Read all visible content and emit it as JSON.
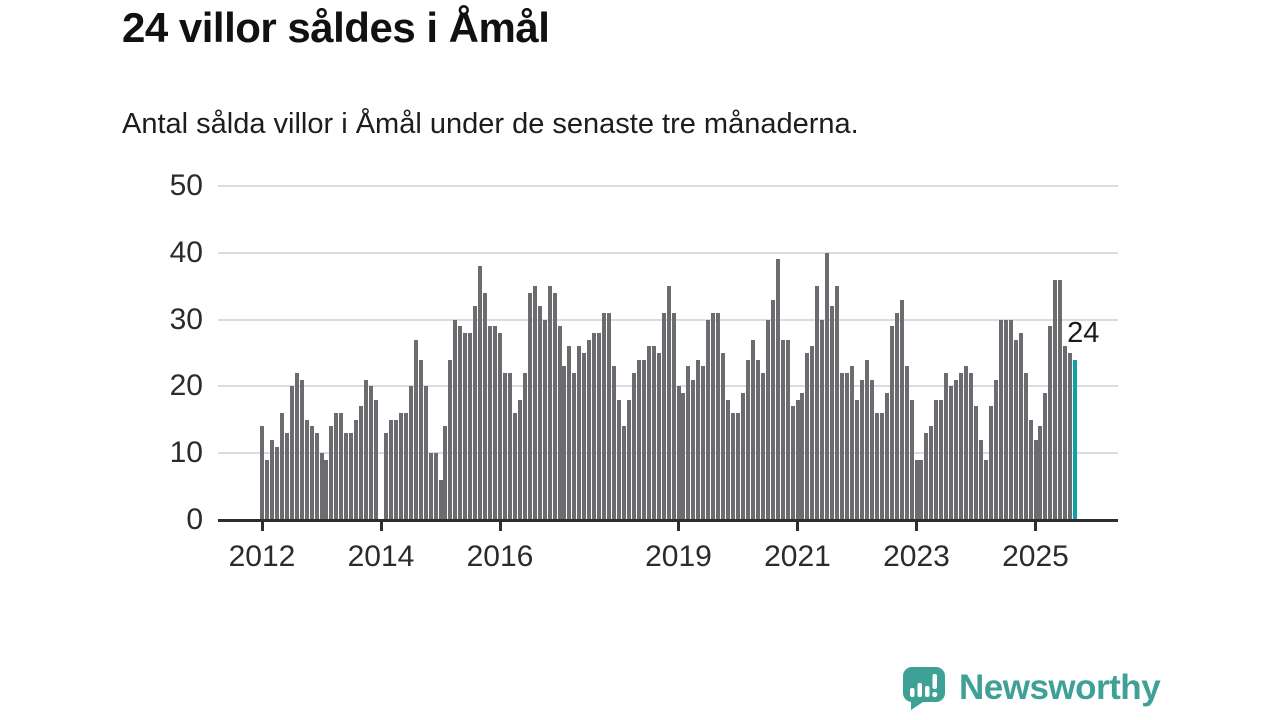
{
  "title": "24 villor såldes i Åmål",
  "subtitle": "Antal sålda villor i Åmål under de senaste tre månaderna.",
  "annotation": {
    "label": "24"
  },
  "chart_data": {
    "type": "bar",
    "title": "24 villor såldes i Åmål",
    "xlabel": "",
    "ylabel": "",
    "frequency": "monthly",
    "start_year": 2012,
    "ylim": [
      0,
      50
    ],
    "y_ticks": [
      0,
      10,
      20,
      30,
      40,
      50
    ],
    "x_tick_years": [
      2012,
      2014,
      2016,
      2019,
      2021,
      2023,
      2025
    ],
    "grid": "horizontal",
    "bar_color": "#6b6b70",
    "highlight_color": "#0ba3a3",
    "highlight_index": 164,
    "highlight_value": 24,
    "values": [
      14,
      9,
      12,
      11,
      16,
      13,
      20,
      22,
      21,
      15,
      14,
      13,
      10,
      9,
      14,
      16,
      16,
      13,
      13,
      15,
      17,
      21,
      20,
      18,
      0,
      13,
      15,
      15,
      16,
      16,
      20,
      27,
      24,
      20,
      10,
      10,
      6,
      14,
      24,
      30,
      29,
      28,
      28,
      32,
      38,
      34,
      29,
      29,
      28,
      22,
      22,
      16,
      18,
      22,
      34,
      35,
      32,
      30,
      35,
      34,
      29,
      23,
      26,
      22,
      26,
      25,
      27,
      28,
      28,
      31,
      31,
      23,
      18,
      14,
      18,
      22,
      24,
      24,
      26,
      26,
      25,
      31,
      35,
      31,
      20,
      19,
      23,
      21,
      24,
      23,
      30,
      31,
      31,
      25,
      18,
      16,
      16,
      19,
      24,
      27,
      24,
      22,
      30,
      33,
      39,
      27,
      27,
      17,
      18,
      19,
      25,
      26,
      35,
      30,
      40,
      32,
      35,
      22,
      22,
      23,
      18,
      21,
      24,
      21,
      16,
      16,
      19,
      29,
      31,
      33,
      23,
      18,
      9,
      9,
      13,
      14,
      18,
      18,
      22,
      20,
      21,
      22,
      23,
      22,
      17,
      12,
      9,
      17,
      21,
      30,
      30,
      30,
      27,
      28,
      22,
      15,
      12,
      14,
      19,
      29,
      36,
      36,
      26,
      25,
      24
    ]
  },
  "footer": {
    "brand": "Newsworthy",
    "brand_color": "#3fa096"
  }
}
